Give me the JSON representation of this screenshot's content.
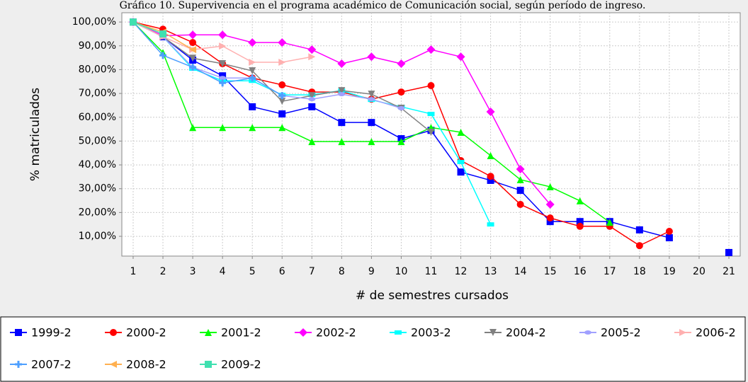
{
  "chart_data": {
    "type": "line",
    "title": "Gráfico 10. Supervivencia en el programa académico de Comunicación social, según período de ingreso.",
    "xlabel": "# de semestres cursados",
    "ylabel": "% matriculados",
    "x": [
      1,
      2,
      3,
      4,
      5,
      6,
      7,
      8,
      9,
      10,
      11,
      12,
      13,
      14,
      15,
      16,
      17,
      18,
      19,
      20,
      21
    ],
    "xlim": [
      0.62,
      21.38
    ],
    "xticks": [
      1,
      2,
      3,
      4,
      5,
      6,
      7,
      8,
      9,
      10,
      11,
      12,
      13,
      14,
      15,
      16,
      17,
      18,
      19,
      20,
      21
    ],
    "ylim": [
      1.7,
      103.9
    ],
    "yticks": [
      {
        "value": 10,
        "label": "10,00%"
      },
      {
        "value": 20,
        "label": "20,00%"
      },
      {
        "value": 30,
        "label": "30,00%"
      },
      {
        "value": 40,
        "label": "40,00%"
      },
      {
        "value": 50,
        "label": "50,00%"
      },
      {
        "value": 60,
        "label": "60,00%"
      },
      {
        "value": 70,
        "label": "70,00%"
      },
      {
        "value": 80,
        "label": "80,00%"
      },
      {
        "value": 90,
        "label": "90,00%"
      },
      {
        "value": 100,
        "label": "100,00%"
      }
    ],
    "grid": true,
    "legend": "bottom",
    "series": [
      {
        "name": "1999-2",
        "color": "#0000ff",
        "marker": "square",
        "values": [
          100,
          93.8,
          84,
          77.4,
          64.4,
          61.4,
          64.4,
          57.8,
          57.8,
          51,
          54.5,
          37,
          33.5,
          29.3,
          16.2,
          16.2,
          16.2,
          12.7,
          9.4,
          null,
          3.2
        ]
      },
      {
        "name": "2000-2",
        "color": "#ff0000",
        "marker": "circle",
        "values": [
          100,
          97,
          91.4,
          82.5,
          76.5,
          73.6,
          70.6,
          70.6,
          67.6,
          70.6,
          73.3,
          41.8,
          35.2,
          23.4,
          17.7,
          14.2,
          14.2,
          6.1,
          12.1,
          null,
          null
        ]
      },
      {
        "name": "2001-2",
        "color": "#00ff00",
        "marker": "triangle-up",
        "values": [
          100,
          87.2,
          55.7,
          55.7,
          55.7,
          55.7,
          49.8,
          49.8,
          49.8,
          49.8,
          55.7,
          53.7,
          43.9,
          33.8,
          30.8,
          24.9,
          15.9,
          null,
          null,
          null,
          null
        ]
      },
      {
        "name": "2002-2",
        "color": "#ff00ff",
        "marker": "diamond",
        "values": [
          100,
          94.3,
          94.6,
          94.6,
          91.4,
          91.4,
          88.4,
          82.5,
          85.4,
          82.5,
          88.4,
          85.4,
          62.3,
          38.2,
          23.4,
          null,
          null,
          null,
          null,
          null,
          null
        ]
      },
      {
        "name": "2003-2",
        "color": "#00ffff",
        "marker": "flat-rect",
        "values": [
          100,
          93.8,
          80.4,
          75.3,
          75.3,
          69.4,
          69.4,
          71.2,
          67.3,
          64.4,
          61.4,
          41.2,
          15,
          null,
          null,
          null,
          null,
          null,
          null,
          null,
          null
        ]
      },
      {
        "name": "2004-2",
        "color": "#808080",
        "marker": "triangle-down",
        "values": [
          100,
          93.8,
          84.8,
          82.5,
          79.5,
          66.7,
          69.1,
          71.2,
          69.7,
          63.8,
          53.7,
          null,
          null,
          null,
          null,
          null,
          null,
          null,
          null,
          null,
          null
        ]
      },
      {
        "name": "2005-2",
        "color": "#a0a0ff",
        "marker": "ellipse",
        "values": [
          100,
          93.8,
          81,
          76.5,
          76.5,
          69.1,
          67.6,
          69.7,
          67.6,
          63.8,
          null,
          null,
          null,
          null,
          null,
          null,
          null,
          null,
          null,
          null,
          null
        ]
      },
      {
        "name": "2006-2",
        "color": "#ffb0b0",
        "marker": "triangle-right",
        "values": [
          100,
          93.8,
          88.4,
          89.9,
          83.1,
          83.1,
          85.4,
          null,
          null,
          null,
          null,
          null,
          null,
          null,
          null,
          null,
          null,
          null,
          null,
          null,
          null
        ]
      },
      {
        "name": "2007-2",
        "color": "#4d9fff",
        "marker": "cross",
        "values": [
          100,
          86,
          81,
          74.4,
          76.5,
          69.1,
          null,
          null,
          null,
          null,
          null,
          null,
          null,
          null,
          null,
          null,
          null,
          null,
          null,
          null,
          null
        ]
      },
      {
        "name": "2008-2",
        "color": "#ffb050",
        "marker": "triangle-left",
        "values": [
          100,
          95.8,
          88.4,
          null,
          null,
          null,
          null,
          null,
          null,
          null,
          null,
          null,
          null,
          null,
          null,
          null,
          null,
          null,
          null,
          null,
          null
        ]
      },
      {
        "name": "2009-2",
        "color": "#40e0b0",
        "marker": "square",
        "values": [
          100,
          95,
          null,
          null,
          null,
          null,
          null,
          null,
          null,
          null,
          null,
          null,
          null,
          null,
          null,
          null,
          null,
          null,
          null,
          null,
          null
        ]
      }
    ]
  }
}
